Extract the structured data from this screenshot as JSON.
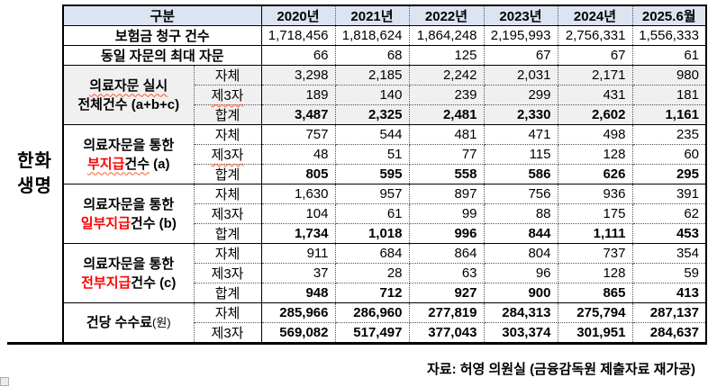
{
  "entity": {
    "lines": [
      "한화",
      "생명"
    ]
  },
  "footer": "자료: 허영 의원실 (금융감독원 제출자료 재가공)",
  "colors": {
    "header_bg": "#dce4f1",
    "shaded_bg": "#f0f0f0",
    "red": "#ff0000",
    "squiggle": "#ff5a2a",
    "border": "#000000"
  },
  "table": {
    "corner_label": "구분",
    "year_headers": [
      "2020년",
      "2021년",
      "2022년",
      "2023년",
      "2024년",
      "2025.6월"
    ],
    "simple_rows": [
      {
        "label": "보험금 청구 건수",
        "values": [
          "1,718,456",
          "1,818,624",
          "1,864,248",
          "2,195,993",
          "2,756,331",
          "1,556,333"
        ]
      },
      {
        "label": "동일 자문의 최대 자문",
        "values": [
          "66",
          "68",
          "125",
          "67",
          "67",
          "61"
        ]
      }
    ],
    "groups": [
      {
        "name": "consult-total",
        "shaded": true,
        "label_lines": [
          {
            "segments": [
              {
                "text": "의료자문 실시",
                "wavy": true
              }
            ]
          },
          {
            "segments": [
              {
                "text": "전체건수 (a+b+c)"
              }
            ]
          }
        ],
        "rows": [
          {
            "label": "자체",
            "values": [
              "3,298",
              "2,185",
              "2,242",
              "2,031",
              "2,171",
              "980"
            ]
          },
          {
            "label": "제3자",
            "wavy": true,
            "values": [
              "189",
              "140",
              "239",
              "299",
              "431",
              "181"
            ]
          },
          {
            "label": "합계",
            "bold_label": true,
            "bold_values": true,
            "values": [
              "3,487",
              "2,325",
              "2,481",
              "2,330",
              "2,602",
              "1,161"
            ]
          }
        ]
      },
      {
        "name": "nonpayment-a",
        "shaded": false,
        "label_lines": [
          {
            "segments": [
              {
                "text": "의료자문을 통한"
              }
            ]
          },
          {
            "segments": [
              {
                "text": "부지급",
                "red": true,
                "wavy": true
              },
              {
                "text": "건수",
                "wavy": true
              },
              {
                "text": " (a)"
              }
            ]
          }
        ],
        "rows": [
          {
            "label": "자체",
            "values": [
              "757",
              "544",
              "481",
              "471",
              "498",
              "235"
            ]
          },
          {
            "label": "제3자",
            "wavy": true,
            "values": [
              "48",
              "51",
              "77",
              "115",
              "128",
              "60"
            ]
          },
          {
            "label": "합계",
            "bold_label": true,
            "bold_values": true,
            "values": [
              "805",
              "595",
              "558",
              "586",
              "626",
              "295"
            ]
          }
        ]
      },
      {
        "name": "partial-payment-b",
        "shaded": false,
        "label_lines": [
          {
            "segments": [
              {
                "text": "의료자문을 통한"
              }
            ]
          },
          {
            "segments": [
              {
                "text": "일부지급",
                "red": true
              },
              {
                "text": "건수 (b)"
              }
            ]
          }
        ],
        "rows": [
          {
            "label": "자체",
            "values": [
              "1,630",
              "957",
              "897",
              "756",
              "936",
              "391"
            ]
          },
          {
            "label": "제3자",
            "values": [
              "104",
              "61",
              "99",
              "88",
              "175",
              "62"
            ]
          },
          {
            "label": "합계",
            "bold_label": true,
            "bold_values": true,
            "values": [
              "1,734",
              "1,018",
              "996",
              "844",
              "1,111",
              "453"
            ]
          }
        ]
      },
      {
        "name": "full-payment-c",
        "shaded": false,
        "label_lines": [
          {
            "segments": [
              {
                "text": "의료자문을 통한"
              }
            ]
          },
          {
            "segments": [
              {
                "text": "전부지급",
                "red": true
              },
              {
                "text": "건수 (c)"
              }
            ]
          }
        ],
        "rows": [
          {
            "label": "자체",
            "values": [
              "911",
              "684",
              "864",
              "804",
              "737",
              "354"
            ]
          },
          {
            "label": "제3자",
            "values": [
              "37",
              "28",
              "63",
              "96",
              "128",
              "59"
            ]
          },
          {
            "label": "합계",
            "bold_label": true,
            "bold_values": true,
            "values": [
              "948",
              "712",
              "927",
              "900",
              "865",
              "413"
            ]
          }
        ]
      },
      {
        "name": "fee-per-case",
        "shaded": false,
        "label_lines": [
          {
            "segments": [
              {
                "text": "건당 수수료"
              },
              {
                "text": "(원)",
                "small": true
              }
            ]
          }
        ],
        "rows": [
          {
            "label": "자체",
            "bold_values": true,
            "values": [
              "285,966",
              "286,960",
              "277,819",
              "284,313",
              "275,794",
              "287,137"
            ]
          },
          {
            "label": "제3자",
            "bold_values": true,
            "values": [
              "569,082",
              "517,497",
              "377,043",
              "303,374",
              "301,951",
              "284,637"
            ]
          }
        ]
      }
    ]
  }
}
